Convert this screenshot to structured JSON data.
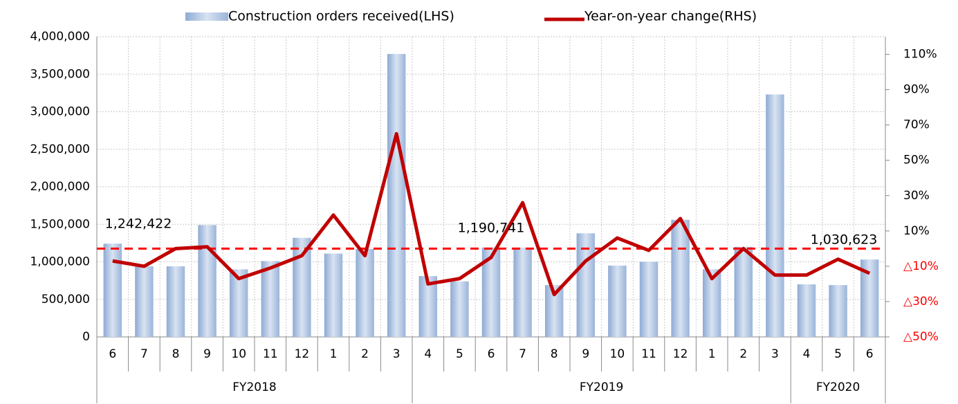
{
  "chart_data": {
    "type": "bar_line",
    "categories": [
      "6",
      "7",
      "8",
      "9",
      "10",
      "11",
      "12",
      "1",
      "2",
      "3",
      "4",
      "5",
      "6",
      "7",
      "8",
      "9",
      "10",
      "11",
      "12",
      "1",
      "2",
      "3",
      "4",
      "5",
      "6"
    ],
    "groups": [
      {
        "name": "FY2018",
        "span": 10
      },
      {
        "name": "FY2019",
        "span": 12
      },
      {
        "name": "FY2020",
        "span": 3
      }
    ],
    "series": [
      {
        "name": "Construction orders received(LHS)",
        "type": "bar",
        "color": "#a9bfdf",
        "values": [
          1242422,
          940000,
          940000,
          1490000,
          900000,
          1010000,
          1320000,
          1110000,
          1170000,
          3770000,
          810000,
          740000,
          1190741,
          1190000,
          690000,
          1380000,
          950000,
          1000000,
          1560000,
          900000,
          1200000,
          3230000,
          700000,
          690000,
          1030623
        ],
        "value_labels": [
          "1,242,422",
          null,
          null,
          null,
          null,
          null,
          null,
          null,
          null,
          null,
          null,
          null,
          "1,190,741",
          null,
          null,
          null,
          null,
          null,
          null,
          null,
          null,
          null,
          null,
          null,
          "1,030,623"
        ]
      },
      {
        "name": "Year-on-year change(RHS)",
        "type": "line",
        "axis": "y2",
        "color": "#c00000",
        "values": [
          -7,
          -10,
          0,
          1,
          -17,
          -11,
          -4,
          19,
          -4,
          65,
          -20,
          -17,
          -5,
          26,
          -26,
          -7,
          6,
          -1,
          17,
          -17,
          0,
          -15,
          -15,
          -6,
          -14
        ]
      }
    ],
    "y2_reference": 0,
    "ylim": [
      0,
      4000000
    ],
    "yticks": [
      0,
      {
        "value": 500000,
        "label": "500,000"
      },
      {
        "value": 1000000,
        "label": "1,000,000"
      },
      {
        "value": 1500000,
        "label": "1,500,000"
      },
      {
        "value": 2000000,
        "label": "2,000,000"
      },
      {
        "value": 2500000,
        "label": "2,500,000"
      },
      {
        "value": 3000000,
        "label": "3,000,000"
      },
      {
        "value": 3500000,
        "label": "3,500,000"
      },
      {
        "value": 4000000,
        "label": "4,000,000"
      }
    ],
    "y2lim": [
      -50,
      120
    ],
    "y2ticks": [
      {
        "value": -50,
        "label": "△50%"
      },
      {
        "value": -30,
        "label": "△30%"
      },
      {
        "value": -10,
        "label": "△10%"
      },
      {
        "value": 10,
        "label": "10%"
      },
      {
        "value": 30,
        "label": "30%"
      },
      {
        "value": 50,
        "label": "50%"
      },
      {
        "value": 70,
        "label": "70%"
      },
      {
        "value": 90,
        "label": "90%"
      },
      {
        "value": 110,
        "label": "110%"
      }
    ],
    "grid": true,
    "legend": "top"
  }
}
